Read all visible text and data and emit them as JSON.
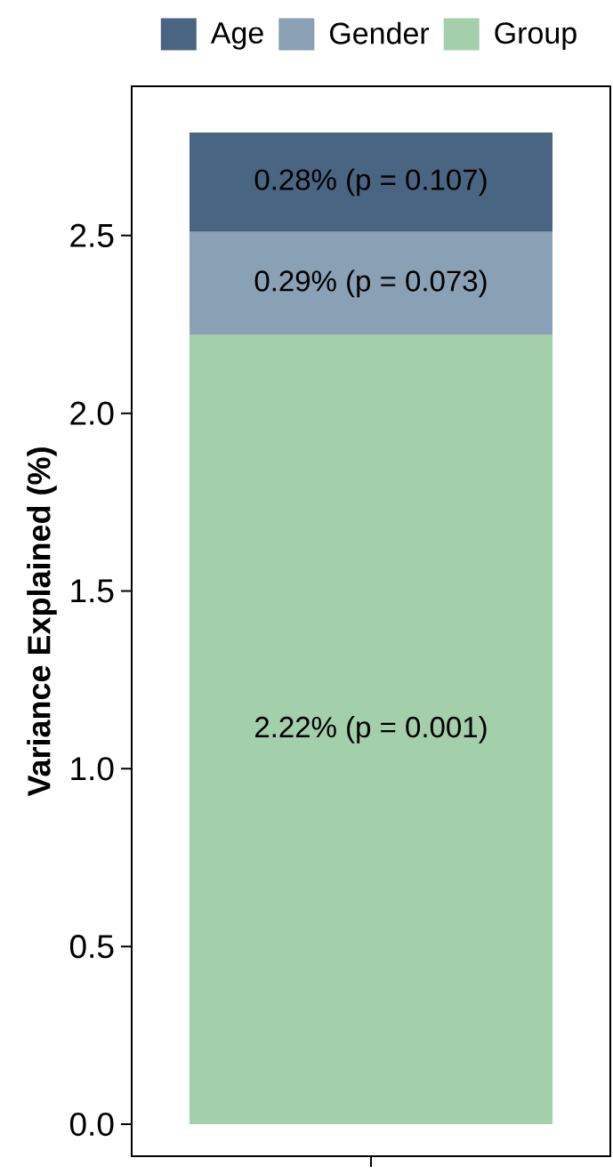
{
  "chart_data": {
    "type": "bar",
    "stacked": true,
    "ylabel": "Variance Explained (%)",
    "categories": [
      null
    ],
    "series": [
      {
        "name": "Group",
        "color": "#a3cfab",
        "values": [
          2.22
        ],
        "value_labels": [
          "2.22% (p = 0.001)"
        ]
      },
      {
        "name": "Gender",
        "color": "#8aa0b5",
        "values": [
          0.29
        ],
        "value_labels": [
          "0.29% (p = 0.073)"
        ]
      },
      {
        "name": "Age",
        "color": "#4a6582",
        "values": [
          0.28
        ],
        "value_labels": [
          "0.28% (p = 0.107)"
        ]
      }
    ],
    "ylim": [
      -0.09,
      2.92
    ],
    "yticks": [
      {
        "value": 0,
        "label": "0.0"
      },
      0.5,
      {
        "value": 1,
        "label": "1.0"
      },
      1.5,
      {
        "value": 2,
        "label": "2.0"
      },
      2.5
    ],
    "legend": "top"
  }
}
